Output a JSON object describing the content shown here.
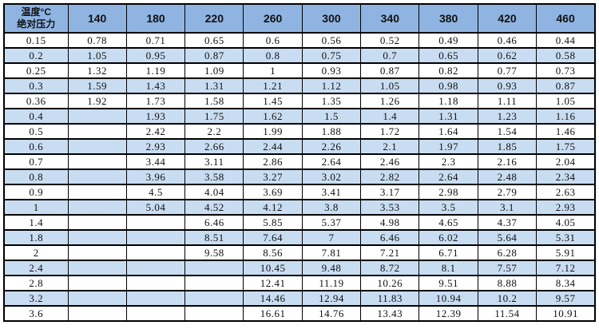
{
  "colors": {
    "header_bg": "#8FB4E2",
    "band_bg": "#C9DDF2",
    "row_bg": "#FFFFFF",
    "border": "#000000",
    "text": "#111111"
  },
  "chart_data": {
    "type": "table",
    "title": "",
    "corner_header": {
      "top": "温度°C",
      "bottom": "绝对压力"
    },
    "column_headers": [
      "140",
      "180",
      "220",
      "260",
      "300",
      "340",
      "380",
      "420",
      "460"
    ],
    "rows": [
      {
        "pressure": "0.15",
        "values": [
          "0.78",
          "0.71",
          "0.65",
          "0.6",
          "0.56",
          "0.52",
          "0.49",
          "0.46",
          "0.44"
        ]
      },
      {
        "pressure": "0.2",
        "values": [
          "1.05",
          "0.95",
          "0.87",
          "0.8",
          "0.75",
          "0.7",
          "0.65",
          "0.62",
          "0.58"
        ]
      },
      {
        "pressure": "0.25",
        "values": [
          "1.32",
          "1.19",
          "1.09",
          "1",
          "0.93",
          "0.87",
          "0.82",
          "0.77",
          "0.73"
        ]
      },
      {
        "pressure": "0.3",
        "values": [
          "1.59",
          "1.43",
          "1.31",
          "1.21",
          "1.12",
          "1.05",
          "0.98",
          "0.93",
          "0.87"
        ]
      },
      {
        "pressure": "0.36",
        "values": [
          "1.92",
          "1.73",
          "1.58",
          "1.45",
          "1.35",
          "1.26",
          "1.18",
          "1.11",
          "1.05"
        ]
      },
      {
        "pressure": "0.4",
        "values": [
          "",
          "1.93",
          "1.75",
          "1.62",
          "1.5",
          "1.4",
          "1.31",
          "1.23",
          "1.16"
        ]
      },
      {
        "pressure": "0.5",
        "values": [
          "",
          "2.42",
          "2.2",
          "1.99",
          "1.88",
          "1.72",
          "1.64",
          "1.54",
          "1.46"
        ]
      },
      {
        "pressure": "0.6",
        "values": [
          "",
          "2.93",
          "2.66",
          "2.44",
          "2.26",
          "2.1",
          "1.97",
          "1.85",
          "1.75"
        ]
      },
      {
        "pressure": "0.7",
        "values": [
          "",
          "3.44",
          "3.11",
          "2.86",
          "2.64",
          "2.46",
          "2.3",
          "2.16",
          "2.04"
        ]
      },
      {
        "pressure": "0.8",
        "values": [
          "",
          "3.96",
          "3.58",
          "3.27",
          "3.02",
          "2.82",
          "2.64",
          "2.48",
          "2.34"
        ]
      },
      {
        "pressure": "0.9",
        "values": [
          "",
          "4.5",
          "4.04",
          "3.69",
          "3.41",
          "3.17",
          "2.98",
          "2.79",
          "2.63"
        ]
      },
      {
        "pressure": "1",
        "values": [
          "",
          "5.04",
          "4.52",
          "4.12",
          "3.8",
          "3.53",
          "3.5",
          "3.1",
          "2.93"
        ]
      },
      {
        "pressure": "1.4",
        "values": [
          "",
          "",
          "6.46",
          "5.85",
          "5.37",
          "4.98",
          "4.65",
          "4.37",
          "4.05"
        ]
      },
      {
        "pressure": "1.8",
        "values": [
          "",
          "",
          "8.51",
          "7.64",
          "7",
          "6.46",
          "6.02",
          "5.64",
          "5.31"
        ]
      },
      {
        "pressure": "2",
        "values": [
          "",
          "",
          "9.58",
          "8.56",
          "7.81",
          "7.21",
          "6.71",
          "6.28",
          "5.91"
        ]
      },
      {
        "pressure": "2.4",
        "values": [
          "",
          "",
          "",
          "10.45",
          "9.48",
          "8.72",
          "8.1",
          "7.57",
          "7.12"
        ]
      },
      {
        "pressure": "2.8",
        "values": [
          "",
          "",
          "",
          "12.41",
          "11.19",
          "10.26",
          "9.51",
          "8.88",
          "8.34"
        ]
      },
      {
        "pressure": "3.2",
        "values": [
          "",
          "",
          "",
          "14.46",
          "12.94",
          "11.83",
          "10.94",
          "10.2",
          "9.57"
        ]
      },
      {
        "pressure": "3.6",
        "values": [
          "",
          "",
          "",
          "16.61",
          "14.76",
          "13.43",
          "12.39",
          "11.54",
          "10.91"
        ]
      }
    ]
  }
}
